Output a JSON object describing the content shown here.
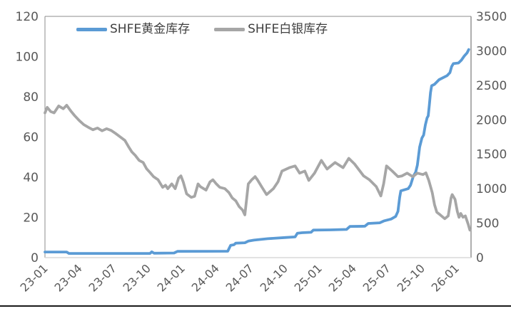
{
  "style": {
    "background": "#FFFFFF",
    "axis_text_color": "#595959",
    "legend_text_color": "#404040",
    "plot_border_color": "#8C8C8C",
    "baseline_color": "#D9D9D9",
    "page_rule_color": "#1A1A1A",
    "gold_color": "#5B9BD5",
    "silver_color": "#A6A6A6"
  },
  "chart_data": {
    "type": "line",
    "title": "",
    "grid": "off",
    "legend": {
      "position": "top-inside",
      "items": [
        {
          "label": "SHFE黄金库存",
          "color": "#5B9BD5"
        },
        {
          "label": "SHFE白银库存",
          "color": "#A6A6A6"
        }
      ]
    },
    "x_axis": {
      "unit": "months since 2023-01",
      "range_months": [
        0,
        37.3
      ],
      "tick_positions_months": [
        0,
        3,
        6,
        9,
        12,
        15,
        18,
        21,
        24,
        27,
        30,
        33,
        36
      ],
      "tick_labels": [
        "23-01",
        "23-04",
        "23-07",
        "23-10",
        "24-01",
        "24-04",
        "24-07",
        "24-10",
        "25-01",
        "25-04",
        "25-07",
        "25-10",
        "26-01"
      ]
    },
    "left_axis": {
      "range": [
        0,
        120
      ],
      "ticks": [
        0,
        20,
        40,
        60,
        80,
        100,
        120
      ]
    },
    "right_axis": {
      "range": [
        0,
        3500
      ],
      "ticks": [
        0,
        500,
        1000,
        1500,
        2000,
        2500,
        3000,
        3500
      ]
    },
    "series": [
      {
        "name": "SHFE黄金库存",
        "axis": "left",
        "color": "#5B9BD5",
        "points": [
          [
            0,
            2.8
          ],
          [
            1.9,
            2.8
          ],
          [
            2.1,
            2.1
          ],
          [
            9.2,
            2.1
          ],
          [
            9.35,
            2.9
          ],
          [
            9.55,
            2.2
          ],
          [
            11.3,
            2.3
          ],
          [
            11.6,
            3.1
          ],
          [
            16.0,
            3.2
          ],
          [
            16.25,
            6.1
          ],
          [
            16.55,
            6.4
          ],
          [
            16.7,
            7.2
          ],
          [
            17.5,
            7.4
          ],
          [
            17.8,
            8.2
          ],
          [
            18.3,
            8.7
          ],
          [
            19.5,
            9.4
          ],
          [
            21.0,
            10.0
          ],
          [
            21.9,
            10.3
          ],
          [
            22.1,
            12.1
          ],
          [
            22.5,
            12.4
          ],
          [
            23.3,
            12.6
          ],
          [
            23.5,
            13.7
          ],
          [
            25.0,
            13.8
          ],
          [
            26.4,
            14.0
          ],
          [
            26.7,
            15.5
          ],
          [
            28.0,
            15.6
          ],
          [
            28.3,
            17.0
          ],
          [
            29.3,
            17.3
          ],
          [
            29.7,
            18.3
          ],
          [
            30.3,
            19.2
          ],
          [
            30.7,
            20.5
          ],
          [
            30.9,
            23.0
          ],
          [
            31.05,
            30.0
          ],
          [
            31.15,
            33.2
          ],
          [
            31.8,
            34.3
          ],
          [
            32.0,
            36.0
          ],
          [
            32.25,
            40.5
          ],
          [
            32.45,
            42.5
          ],
          [
            32.6,
            46.0
          ],
          [
            32.8,
            55.0
          ],
          [
            33.0,
            59.5
          ],
          [
            33.15,
            61.0
          ],
          [
            33.3,
            66.0
          ],
          [
            33.45,
            69.5
          ],
          [
            33.55,
            70.5
          ],
          [
            33.65,
            76.0
          ],
          [
            33.75,
            82.0
          ],
          [
            33.85,
            85.5
          ],
          [
            34.1,
            86.2
          ],
          [
            34.5,
            88.5
          ],
          [
            35.2,
            90.5
          ],
          [
            35.45,
            92.0
          ],
          [
            35.6,
            95.0
          ],
          [
            35.75,
            96.5
          ],
          [
            36.2,
            96.8
          ],
          [
            36.45,
            98.2
          ],
          [
            36.7,
            100.2
          ],
          [
            36.95,
            101.8
          ],
          [
            37.1,
            103.5
          ]
        ]
      },
      {
        "name": "SHFE白银库存",
        "axis": "right",
        "color": "#A6A6A6",
        "points": [
          [
            0,
            2100
          ],
          [
            0.2,
            2180
          ],
          [
            0.5,
            2120
          ],
          [
            0.8,
            2100
          ],
          [
            1.2,
            2200
          ],
          [
            1.6,
            2160
          ],
          [
            1.9,
            2210
          ],
          [
            2.3,
            2120
          ],
          [
            2.6,
            2060
          ],
          [
            3.0,
            1990
          ],
          [
            3.4,
            1930
          ],
          [
            3.8,
            1890
          ],
          [
            4.2,
            1855
          ],
          [
            4.6,
            1880
          ],
          [
            5.0,
            1840
          ],
          [
            5.4,
            1870
          ],
          [
            5.8,
            1845
          ],
          [
            6.2,
            1800
          ],
          [
            6.6,
            1750
          ],
          [
            7.0,
            1700
          ],
          [
            7.3,
            1615
          ],
          [
            7.6,
            1535
          ],
          [
            7.9,
            1485
          ],
          [
            8.25,
            1410
          ],
          [
            8.6,
            1380
          ],
          [
            8.9,
            1290
          ],
          [
            9.2,
            1235
          ],
          [
            9.5,
            1175
          ],
          [
            9.9,
            1130
          ],
          [
            10.3,
            1020
          ],
          [
            10.55,
            1050
          ],
          [
            10.75,
            1000
          ],
          [
            11.1,
            1070
          ],
          [
            11.4,
            1000
          ],
          [
            11.7,
            1155
          ],
          [
            11.9,
            1185
          ],
          [
            12.1,
            1100
          ],
          [
            12.4,
            925
          ],
          [
            12.8,
            875
          ],
          [
            13.1,
            890
          ],
          [
            13.4,
            1070
          ],
          [
            13.6,
            1030
          ],
          [
            14.1,
            980
          ],
          [
            14.45,
            1100
          ],
          [
            14.7,
            1130
          ],
          [
            15.0,
            1070
          ],
          [
            15.3,
            1020
          ],
          [
            15.75,
            1000
          ],
          [
            16.1,
            945
          ],
          [
            16.4,
            865
          ],
          [
            16.7,
            825
          ],
          [
            17.0,
            740
          ],
          [
            17.3,
            690
          ],
          [
            17.5,
            620
          ],
          [
            17.8,
            1070
          ],
          [
            18.1,
            1130
          ],
          [
            18.4,
            1175
          ],
          [
            18.6,
            1130
          ],
          [
            19.0,
            1020
          ],
          [
            19.4,
            915
          ],
          [
            20.0,
            1000
          ],
          [
            20.4,
            1100
          ],
          [
            20.75,
            1255
          ],
          [
            21.4,
            1305
          ],
          [
            21.9,
            1330
          ],
          [
            22.3,
            1225
          ],
          [
            22.75,
            1255
          ],
          [
            23.1,
            1120
          ],
          [
            23.6,
            1225
          ],
          [
            24.2,
            1410
          ],
          [
            24.7,
            1285
          ],
          [
            25.4,
            1380
          ],
          [
            26.1,
            1305
          ],
          [
            26.6,
            1440
          ],
          [
            27.1,
            1360
          ],
          [
            27.9,
            1185
          ],
          [
            28.4,
            1130
          ],
          [
            29.0,
            1030
          ],
          [
            29.4,
            895
          ],
          [
            29.65,
            1075
          ],
          [
            29.9,
            1330
          ],
          [
            30.4,
            1255
          ],
          [
            30.9,
            1175
          ],
          [
            31.25,
            1185
          ],
          [
            31.7,
            1225
          ],
          [
            32.2,
            1175
          ],
          [
            32.6,
            1225
          ],
          [
            33.1,
            1205
          ],
          [
            33.35,
            1230
          ],
          [
            33.6,
            1120
          ],
          [
            33.9,
            945
          ],
          [
            34.1,
            770
          ],
          [
            34.3,
            660
          ],
          [
            34.6,
            620
          ],
          [
            35.0,
            565
          ],
          [
            35.3,
            605
          ],
          [
            35.55,
            865
          ],
          [
            35.65,
            915
          ],
          [
            35.9,
            845
          ],
          [
            36.1,
            670
          ],
          [
            36.25,
            585
          ],
          [
            36.4,
            640
          ],
          [
            36.6,
            585
          ],
          [
            36.8,
            605
          ],
          [
            37.05,
            485
          ],
          [
            37.2,
            400
          ]
        ]
      }
    ]
  }
}
